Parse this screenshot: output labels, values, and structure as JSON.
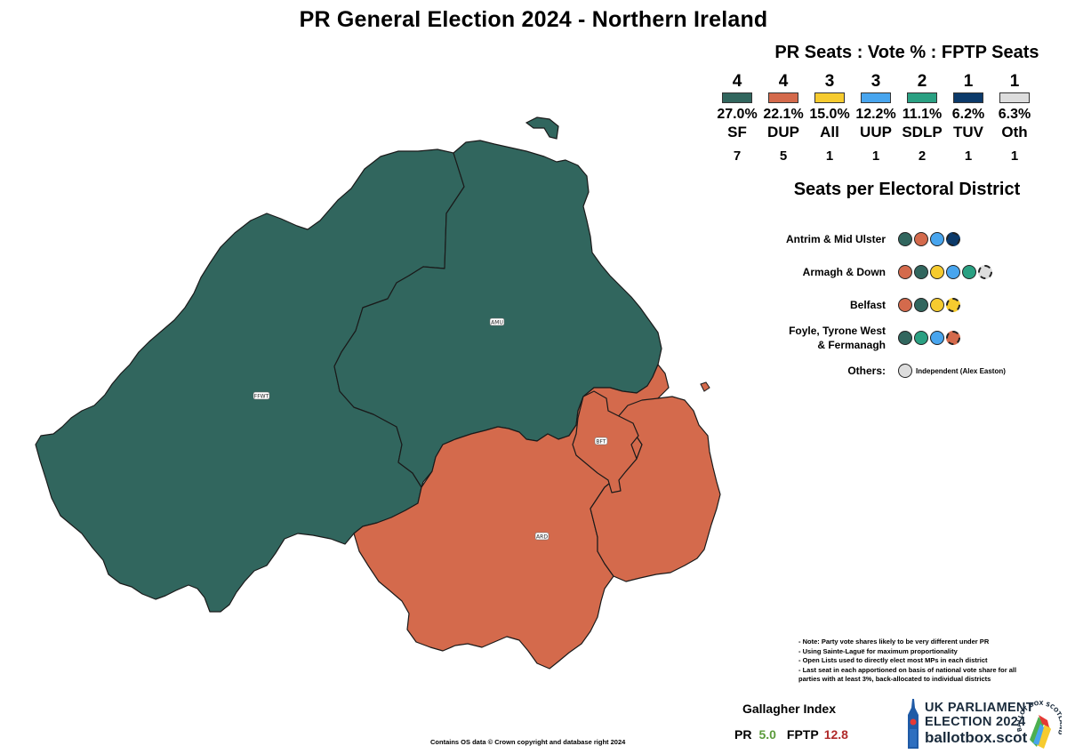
{
  "title": "PR General Election 2024 - Northern Ireland",
  "legend": {
    "heading": "PR Seats : Vote % : FPTP Seats",
    "parties": [
      {
        "name": "SF",
        "pr_seats": "4",
        "vote": "27.0%",
        "fptp_seats": "7",
        "color": "#31665e"
      },
      {
        "name": "DUP",
        "pr_seats": "4",
        "vote": "22.1%",
        "fptp_seats": "5",
        "color": "#d46a4c"
      },
      {
        "name": "All",
        "pr_seats": "3",
        "vote": "15.0%",
        "fptp_seats": "1",
        "color": "#f6cb2f"
      },
      {
        "name": "UUP",
        "pr_seats": "3",
        "vote": "12.2%",
        "fptp_seats": "1",
        "color": "#48a5ee"
      },
      {
        "name": "SDLP",
        "pr_seats": "2",
        "vote": "11.1%",
        "fptp_seats": "2",
        "color": "#2aa082"
      },
      {
        "name": "TUV",
        "pr_seats": "1",
        "vote": "6.2%",
        "fptp_seats": "1",
        "color": "#0c3a6a"
      },
      {
        "name": "Oth",
        "pr_seats": "1",
        "vote": "6.3%",
        "fptp_seats": "1",
        "color": "#dddddd"
      }
    ]
  },
  "districts": {
    "heading": "Seats per Electoral District",
    "rows": [
      {
        "name": "Antrim & Mid Ulster",
        "seats": [
          {
            "party": "SF",
            "color": "#31665e",
            "topup": false
          },
          {
            "party": "DUP",
            "color": "#d46a4c",
            "topup": false
          },
          {
            "party": "UUP",
            "color": "#48a5ee",
            "topup": false
          },
          {
            "party": "TUV",
            "color": "#0c3a6a",
            "topup": true
          }
        ]
      },
      {
        "name": "Armagh & Down",
        "seats": [
          {
            "party": "DUP",
            "color": "#d46a4c",
            "topup": false
          },
          {
            "party": "SF",
            "color": "#31665e",
            "topup": false
          },
          {
            "party": "All",
            "color": "#f6cb2f",
            "topup": false
          },
          {
            "party": "UUP",
            "color": "#48a5ee",
            "topup": false
          },
          {
            "party": "SDLP",
            "color": "#2aa082",
            "topup": false
          },
          {
            "party": "Oth",
            "color": "#dddddd",
            "topup": true
          }
        ]
      },
      {
        "name": "Belfast",
        "seats": [
          {
            "party": "DUP",
            "color": "#d46a4c",
            "topup": false
          },
          {
            "party": "SF",
            "color": "#31665e",
            "topup": false
          },
          {
            "party": "All",
            "color": "#f6cb2f",
            "topup": false
          },
          {
            "party": "All",
            "color": "#f6cb2f",
            "topup": true
          }
        ]
      },
      {
        "name": "Foyle, Tyrone West & Fermanagh",
        "seats": [
          {
            "party": "SF",
            "color": "#31665e",
            "topup": false
          },
          {
            "party": "SDLP",
            "color": "#2aa082",
            "topup": false
          },
          {
            "party": "UUP",
            "color": "#48a5ee",
            "topup": false
          },
          {
            "party": "DUP",
            "color": "#d46a4c",
            "topup": true
          }
        ]
      }
    ],
    "others_label": "Others:",
    "others_text": "Independent (Alex Easton)",
    "others_color": "#dddddd"
  },
  "map": {
    "regions": [
      {
        "code": "FFWT",
        "party": "SF",
        "color": "#31665e"
      },
      {
        "code": "AMU",
        "party": "SF",
        "color": "#31665e"
      },
      {
        "code": "ARD",
        "party": "DUP",
        "color": "#d46a4c"
      },
      {
        "code": "BFT",
        "party": "DUP",
        "color": "#d46a4c"
      }
    ],
    "outline_color": "#1a1a1a"
  },
  "notes": [
    "- Note: Party vote shares likely to be very different under PR",
    "- Using Sainte-Laguë for maximum proportionality",
    "- Open Lists used to directly elect most MPs in each district",
    "- Last seat in each apportioned on basis of national vote share for all parties with at least 3%, back-allocated to individual districts"
  ],
  "gallagher": {
    "title": "Gallagher Index",
    "pr_label": "PR",
    "pr_value": "5.0",
    "fptp_label": "FPTP",
    "fptp_value": "12.8"
  },
  "credit": "Contains OS data © Crown copyright and database right 2024",
  "logo": {
    "line1": "UK PARLIAMENT",
    "line2": "ELECTION 2024",
    "line3": "ballotbox.scot",
    "seal_text": "BALLOT BOX SCOTLAND"
  }
}
